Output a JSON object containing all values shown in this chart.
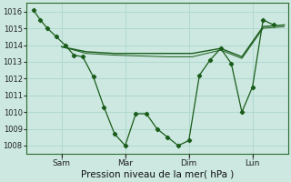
{
  "xlabel": "Pression niveau de la mer( hPa )",
  "ylim": [
    1007.5,
    1016.5
  ],
  "yticks": [
    1008,
    1009,
    1010,
    1011,
    1012,
    1013,
    1014,
    1015,
    1016
  ],
  "xtick_positions": [
    16,
    52,
    88,
    124
  ],
  "xtick_labels": [
    "Sam",
    "Mar",
    "Dim",
    "Lun"
  ],
  "bg_color": "#cce8e0",
  "grid_color": "#b0d8cf",
  "line_color": "#1a5c1a",
  "line1_x": [
    0,
    4,
    8,
    13,
    18,
    23,
    28,
    34,
    40,
    46,
    52,
    58,
    64,
    70,
    76,
    82,
    88,
    94,
    100,
    106,
    112,
    118,
    124,
    130,
    136
  ],
  "line1_y": [
    1016.1,
    1015.5,
    1015.0,
    1014.5,
    1014.0,
    1013.4,
    1013.3,
    1012.1,
    1010.3,
    1008.7,
    1008.0,
    1009.9,
    1009.9,
    1009.0,
    1008.5,
    1008.0,
    1008.3,
    1012.2,
    1013.1,
    1013.8,
    1012.9,
    1010.0,
    1011.5,
    1015.5,
    1015.2
  ],
  "line2_x": [
    16,
    30,
    46,
    60,
    76,
    90,
    106,
    118,
    130,
    142
  ],
  "line2_y": [
    1013.9,
    1013.6,
    1013.5,
    1013.5,
    1013.5,
    1013.5,
    1013.8,
    1013.3,
    1015.1,
    1015.2
  ],
  "line3_x": [
    16,
    30,
    46,
    60,
    76,
    90,
    106,
    118,
    130,
    142
  ],
  "line3_y": [
    1013.9,
    1013.5,
    1013.4,
    1013.35,
    1013.3,
    1013.3,
    1013.7,
    1013.2,
    1015.0,
    1015.1
  ],
  "xlim": [
    -4,
    144
  ],
  "vlines": [
    16,
    52,
    88,
    124
  ]
}
